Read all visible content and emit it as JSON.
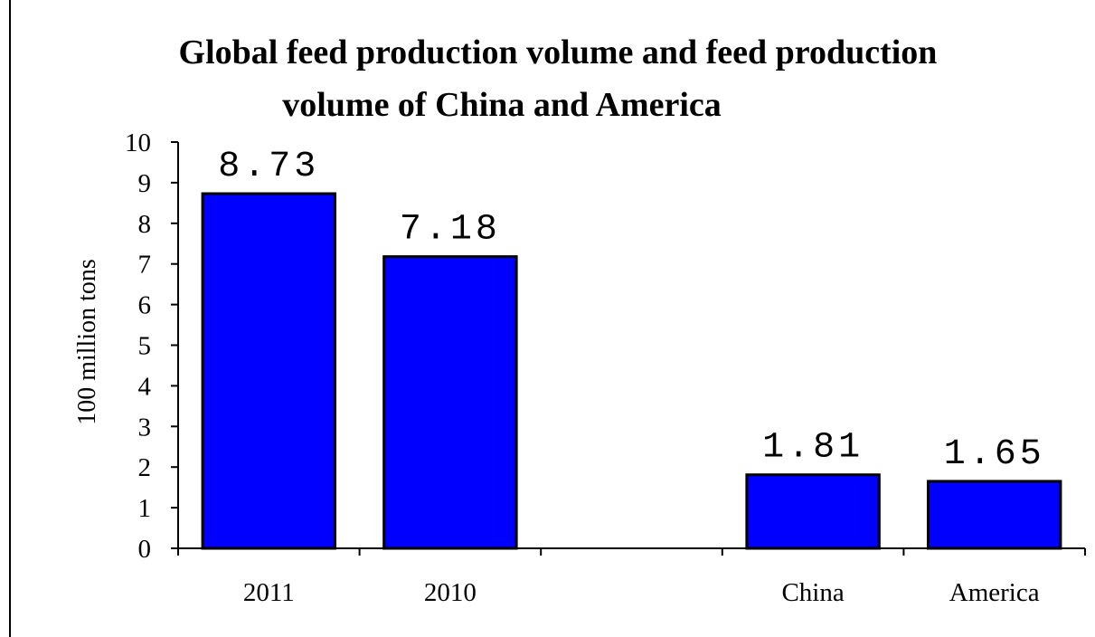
{
  "chart_data": {
    "type": "bar",
    "title": "Global feed production volume and feed production volume of China and America",
    "title_lines": [
      "Global feed production volume and feed production",
      "volume of China and America"
    ],
    "ylabel": "100 million tons",
    "xlabel": "",
    "ylim": [
      0,
      10
    ],
    "yticks": [
      "0",
      "1",
      "2",
      "3",
      "4",
      "5",
      "6",
      "7",
      "8",
      "9",
      "10"
    ],
    "categories": [
      "2011",
      "2010",
      "",
      "China",
      "America"
    ],
    "values": [
      8.73,
      7.18,
      null,
      1.81,
      1.65
    ],
    "data_labels": [
      "8.73",
      "7.18",
      "",
      "1.81",
      "1.65"
    ],
    "grid": false,
    "legend": "none",
    "bar_color": "#0000ff"
  }
}
